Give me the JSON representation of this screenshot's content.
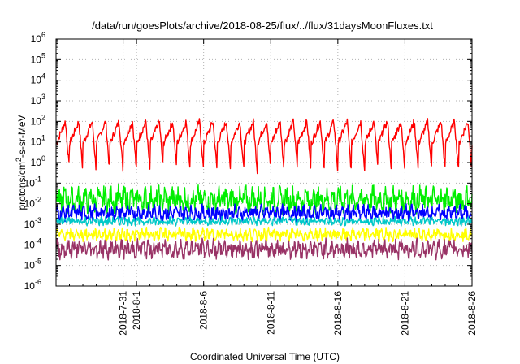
{
  "chart_data": {
    "type": "line",
    "title": "/data/run/goesPlots/archive/2018-08-25/flux/../flux/31daysMoonFluxes.txt",
    "xlabel": "Coordinated Universal Time (UTC)",
    "ylabel": "protons/cm2-s-sr-MeV",
    "ylabel_parts": {
      "pre": "protons/cm",
      "sup": "2",
      "post": "-s-sr-MeV"
    },
    "y_scale": "log",
    "ylim": [
      1e-06,
      1000000.0
    ],
    "xlim": [
      "2018-07-26",
      "2018-08-26"
    ],
    "grid": true,
    "y_ticks": [
      {
        "base": "10",
        "exp": "-6"
      },
      {
        "base": "10",
        "exp": "-5"
      },
      {
        "base": "10",
        "exp": "-4"
      },
      {
        "base": "10",
        "exp": "-3"
      },
      {
        "base": "10",
        "exp": "-2"
      },
      {
        "base": "10",
        "exp": "-1"
      },
      {
        "base": "10",
        "exp": "0"
      },
      {
        "base": "10",
        "exp": "1"
      },
      {
        "base": "10",
        "exp": "2"
      },
      {
        "base": "10",
        "exp": "3"
      },
      {
        "base": "10",
        "exp": "4"
      },
      {
        "base": "10",
        "exp": "5"
      },
      {
        "base": "10",
        "exp": "6"
      }
    ],
    "x_ticks": [
      {
        "label": "2018-7-31",
        "day": 5
      },
      {
        "label": "2018-8-1",
        "day": 6
      },
      {
        "label": "2018-8-6",
        "day": 11
      },
      {
        "label": "2018-8-11",
        "day": 16
      },
      {
        "label": "2018-8-16",
        "day": 21
      },
      {
        "label": "2018-8-21",
        "day": 26
      },
      {
        "label": "2018-8-26",
        "day": 31
      }
    ],
    "series": [
      {
        "color": "#ff0000",
        "level": 1.5,
        "amplitude": 1.1,
        "period": 1.0,
        "noise": 0.18
      },
      {
        "color": "#00ee00",
        "level": -1.8,
        "amplitude": 0.25,
        "period": 0.5,
        "noise": 0.25
      },
      {
        "color": "#0000ff",
        "level": -2.45,
        "amplitude": 0.15,
        "period": 0.4,
        "noise": 0.15
      },
      {
        "color": "#00c8c8",
        "level": -2.85,
        "amplitude": 0.08,
        "period": 0.3,
        "noise": 0.08
      },
      {
        "color": "#ffff00",
        "level": -3.5,
        "amplitude": 0.12,
        "period": 0.35,
        "noise": 0.12
      },
      {
        "color": "#993366",
        "level": -4.2,
        "amplitude": 0.18,
        "period": 0.4,
        "noise": 0.18
      }
    ]
  }
}
